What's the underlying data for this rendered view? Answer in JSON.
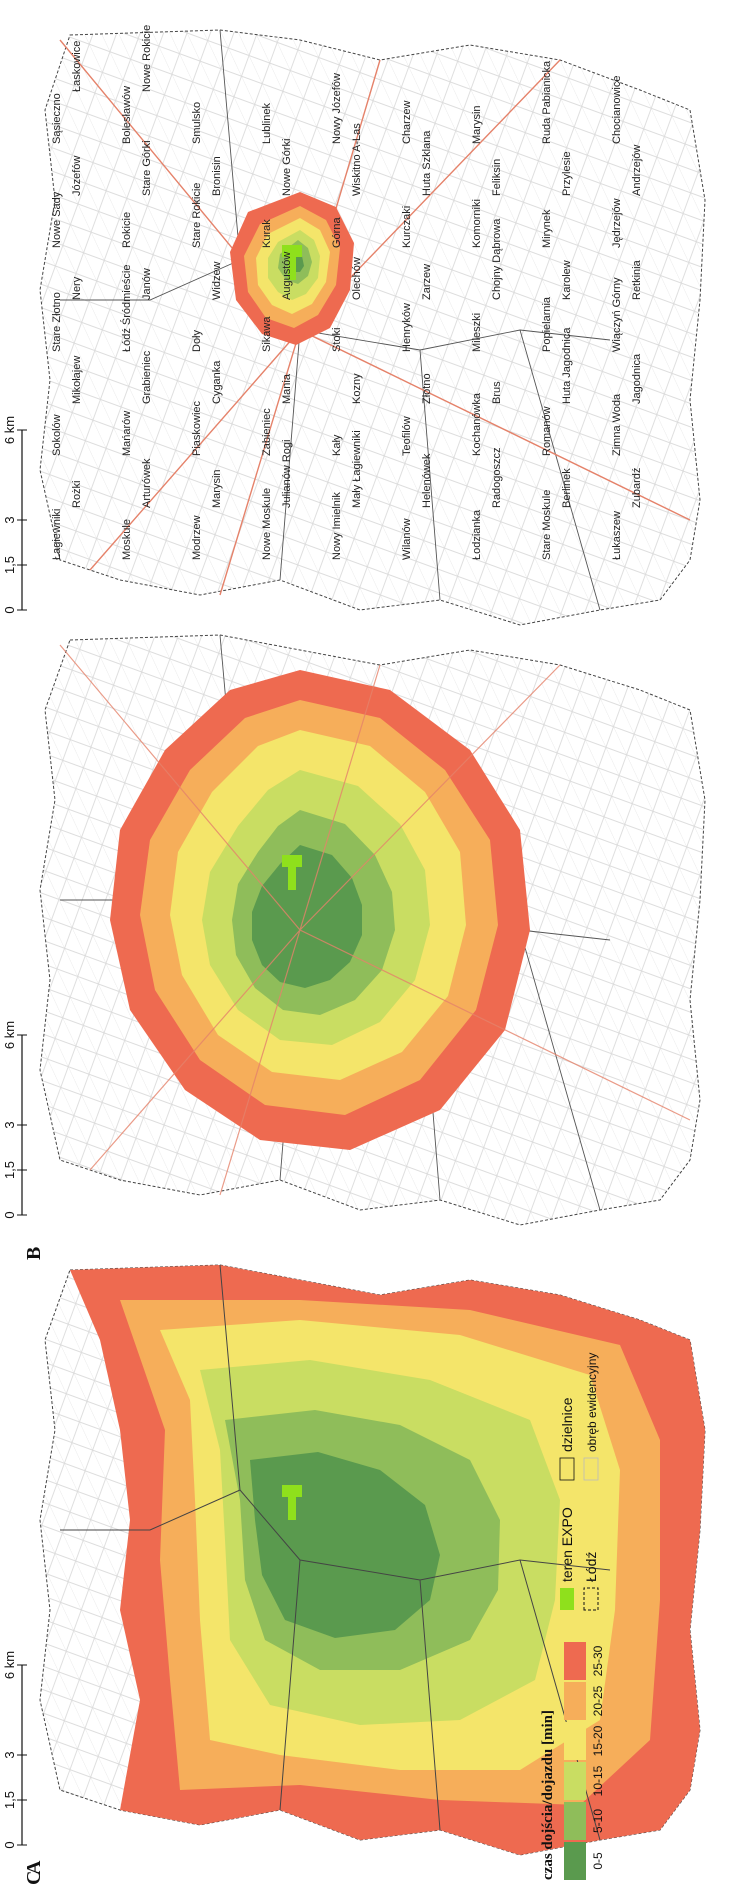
{
  "panels": [
    {
      "letter": "A",
      "scale": {
        "ticks": [
          "0",
          "1,5",
          "3",
          "6 km"
        ]
      },
      "districts": [
        "Łagiewniki",
        "Moskule",
        "Modrzew",
        "Nowe Moskule",
        "Nowy Imielnik",
        "Wilanów",
        "Łodzianka",
        "Stare Moskule",
        "Łukaszew",
        "Rożki",
        "Arturówek",
        "Marysin",
        "Julianów Rogi",
        "Mały Łagiewniki",
        "Helenówek",
        "Radogoszcz",
        "Berlinek",
        "Zubardź",
        "Sokolów",
        "Mańarów",
        "Piaskowiec",
        "Zabieniec",
        "Kały",
        "Teofilów",
        "Kochanówka",
        "Romanów",
        "Zimna Woda",
        "Mikołajew",
        "Grabieniec",
        "Cyganka",
        "Mania",
        "Kozny",
        "Złotno",
        "Brus",
        "Huta Jagodnica",
        "Jagodnica",
        "Stare Złotno",
        "Łódź Śródmieście",
        "Doły",
        "Sikawa",
        "Stoki",
        "Henryków",
        "Mileszki",
        "Popielarnia",
        "Wiączyń Górny",
        "Nery",
        "Janów",
        "Widzew",
        "Augustów",
        "Olechów",
        "Zarzew",
        "Chojny Dąbrowa",
        "Karolew",
        "Retkinia",
        "Nowe Sady",
        "Rokicie",
        "Stare Rokicie",
        "Kurak",
        "Górna",
        "Kurczaki",
        "Komorniki",
        "Mirynek",
        "Jędrzejów",
        "Józefów",
        "Stare Górki",
        "Bronisin",
        "Nowe Górki",
        "Wiskitno A-Las",
        "Huta Szklana",
        "Feliksin",
        "Przylesie",
        "Andrzejów",
        "Sąsieczno",
        "Bolesławów",
        "Smulsko",
        "Lublinek",
        "Nowy Józefów",
        "Charzew",
        "Marysin",
        "Ruda Pabianicka",
        "Chocianowice",
        "Łaskowice",
        "Nowe Rokicie"
      ]
    },
    {
      "letter": "B",
      "scale": {
        "ticks": [
          "0",
          "1,5",
          "3",
          "6 km"
        ]
      }
    },
    {
      "letter": "C",
      "scale": {
        "ticks": [
          "0",
          "1,5",
          "3",
          "6 km"
        ]
      }
    }
  ],
  "legend": {
    "title": "czas dojścia/dojazdu [min]",
    "classes": [
      {
        "label": "0-5",
        "color": "#5a9a4e"
      },
      {
        "label": "5-10",
        "color": "#8fbd5a"
      },
      {
        "label": "10-15",
        "color": "#c9dd62"
      },
      {
        "label": "15-20",
        "color": "#f4e56a"
      },
      {
        "label": "20-25",
        "color": "#f6ae5a"
      },
      {
        "label": "25-30",
        "color": "#ee6a50"
      }
    ],
    "items": [
      {
        "label": "teren EXPO",
        "color": "#8fe01c"
      },
      {
        "label": "Łódź"
      },
      {
        "label": "dzielnice"
      },
      {
        "label": "obręb ewidencyjny"
      }
    ]
  }
}
